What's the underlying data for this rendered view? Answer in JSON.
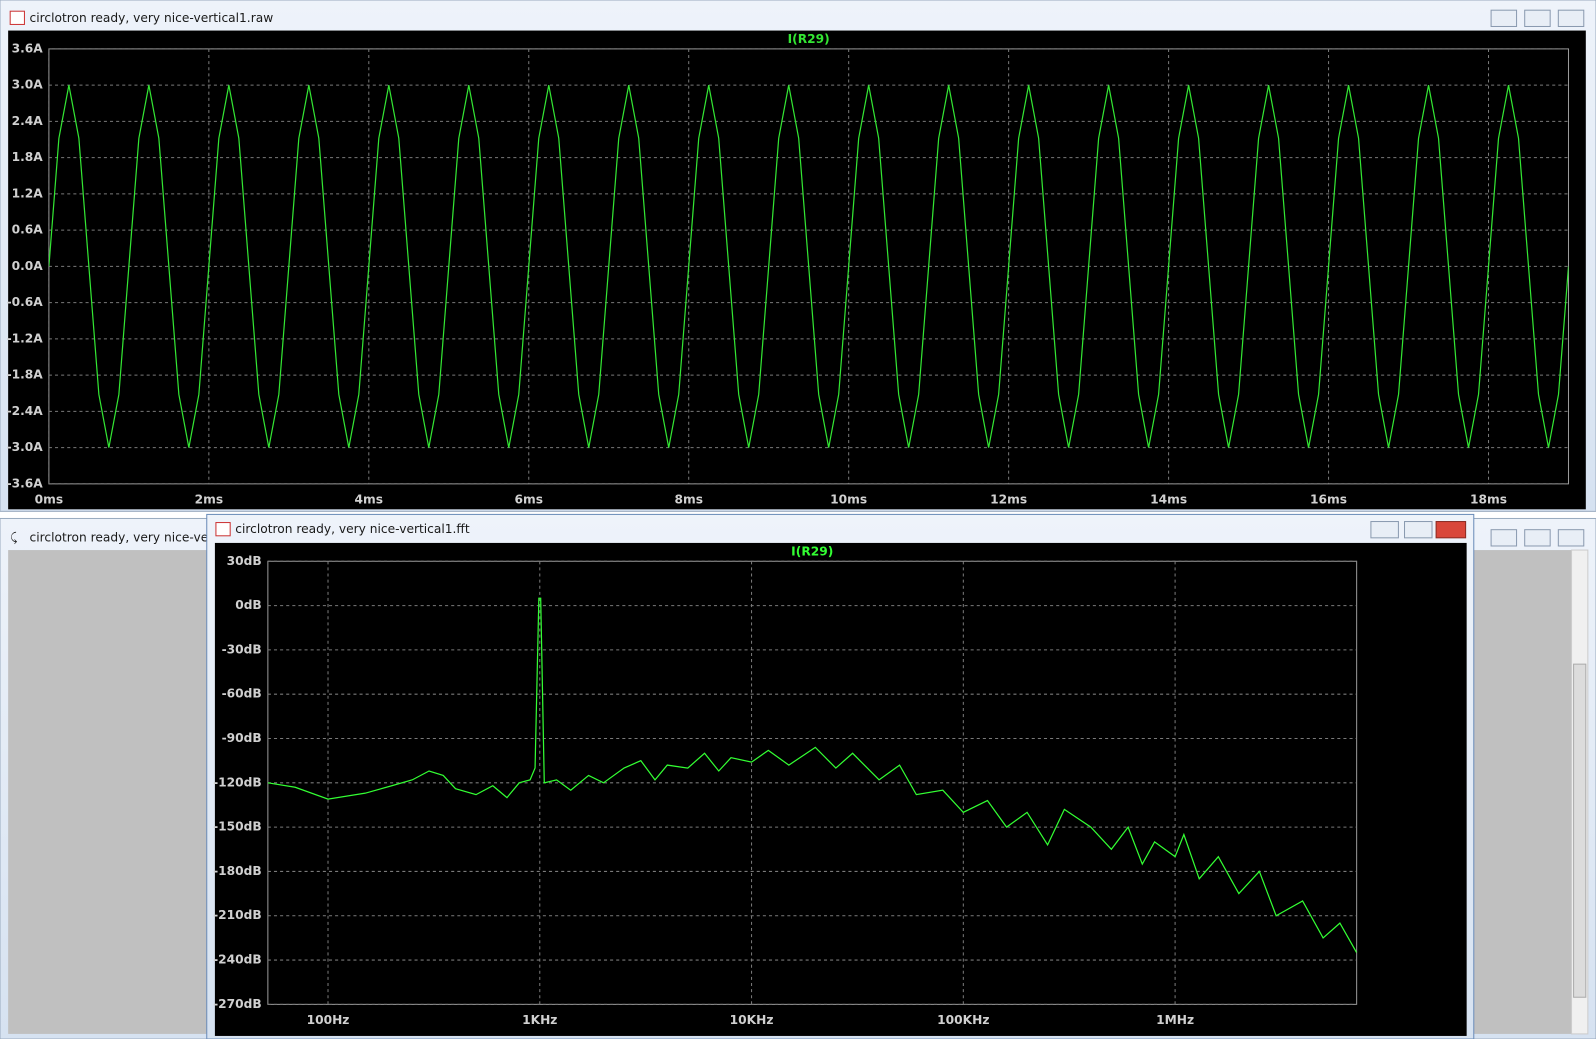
{
  "windows": [
    {
      "title": "circlotron ready, very nice-vertical1.raw"
    },
    {
      "title": "circlotron ready, very nice-vertica"
    },
    {
      "title": "circlotron ready, very nice-vertical1.fft"
    }
  ],
  "chart_data": [
    {
      "type": "line",
      "xscale": "linear",
      "grid": true,
      "x": [
        0,
        0.125,
        0.25,
        0.375,
        0.5,
        0.625,
        0.75,
        0.875,
        1,
        1.125,
        1.25,
        1.375,
        1.5,
        1.625,
        1.75,
        1.875,
        2,
        2.125,
        2.25,
        2.375,
        2.5,
        2.625,
        2.75,
        2.875,
        3,
        3.125,
        3.25,
        3.375,
        3.5,
        3.625,
        3.75,
        3.875,
        4,
        4.125,
        4.25,
        4.375,
        4.5,
        4.625,
        4.75,
        4.875,
        5,
        5.125,
        5.25,
        5.375,
        5.5,
        5.625,
        5.75,
        5.875,
        6,
        6.125,
        6.25,
        6.375,
        6.5,
        6.625,
        6.75,
        6.875,
        7,
        7.125,
        7.25,
        7.375,
        7.5,
        7.625,
        7.75,
        7.875,
        8,
        8.125,
        8.25,
        8.375,
        8.5,
        8.625,
        8.75,
        8.875,
        9,
        9.125,
        9.25,
        9.375,
        9.5,
        9.625,
        9.75,
        9.875,
        10,
        10.125,
        10.25,
        10.375,
        10.5,
        10.625,
        10.75,
        10.875,
        11,
        11.125,
        11.25,
        11.375,
        11.5,
        11.625,
        11.75,
        11.875,
        12,
        12.125,
        12.25,
        12.375,
        12.5,
        12.625,
        12.75,
        12.875,
        13,
        13.125,
        13.25,
        13.375,
        13.5,
        13.625,
        13.75,
        13.875,
        14,
        14.125,
        14.25,
        14.375,
        14.5,
        14.625,
        14.75,
        14.875,
        15,
        15.125,
        15.25,
        15.375,
        15.5,
        15.625,
        15.75,
        15.875,
        16,
        16.125,
        16.25,
        16.375,
        16.5,
        16.625,
        16.75,
        16.875,
        17,
        17.125,
        17.25,
        17.375,
        17.5,
        17.625,
        17.75,
        17.875,
        18,
        18.125,
        18.25,
        18.375,
        18.5,
        18.625,
        18.75,
        18.875,
        19
      ],
      "series": [
        {
          "name": "I(R29)",
          "color": "#33e633",
          "values": [
            0,
            2.12,
            3,
            2.12,
            0,
            -2.12,
            -3,
            -2.12,
            0,
            2.12,
            3,
            2.12,
            0,
            -2.12,
            -3,
            -2.12,
            0,
            2.12,
            3,
            2.12,
            0,
            -2.12,
            -3,
            -2.12,
            0,
            2.12,
            3,
            2.12,
            0,
            -2.12,
            -3,
            -2.12,
            0,
            2.12,
            3,
            2.12,
            0,
            -2.12,
            -3,
            -2.12,
            0,
            2.12,
            3,
            2.12,
            0,
            -2.12,
            -3,
            -2.12,
            0,
            2.12,
            3,
            2.12,
            0,
            -2.12,
            -3,
            -2.12,
            0,
            2.12,
            3,
            2.12,
            0,
            -2.12,
            -3,
            -2.12,
            0,
            2.12,
            3,
            2.12,
            0,
            -2.12,
            -3,
            -2.12,
            0,
            2.12,
            3,
            2.12,
            0,
            -2.12,
            -3,
            -2.12,
            0,
            2.12,
            3,
            2.12,
            0,
            -2.12,
            -3,
            -2.12,
            0,
            2.12,
            3,
            2.12,
            0,
            -2.12,
            -3,
            -2.12,
            0,
            2.12,
            3,
            2.12,
            0,
            -2.12,
            -3,
            -2.12,
            0,
            2.12,
            3,
            2.12,
            0,
            -2.12,
            -3,
            -2.12,
            0,
            2.12,
            3,
            2.12,
            0,
            -2.12,
            -3,
            -2.12,
            0,
            2.12,
            3,
            2.12,
            0,
            -2.12,
            -3,
            -2.12,
            0,
            2.12,
            3,
            2.12,
            0,
            -2.12,
            -3,
            -2.12,
            0,
            2.12,
            3,
            2.12,
            0,
            -2.12,
            -3,
            -2.12,
            0,
            2.12,
            3,
            2.12,
            0,
            -2.12,
            -3,
            -2.12,
            0
          ]
        }
      ],
      "xlim": [
        0,
        19
      ],
      "xticks": [
        {
          "value": 0,
          "label": "0ms"
        },
        {
          "value": 2,
          "label": "2ms"
        },
        {
          "value": 4,
          "label": "4ms"
        },
        {
          "value": 6,
          "label": "6ms"
        },
        {
          "value": 8,
          "label": "8ms"
        },
        {
          "value": 10,
          "label": "10ms"
        },
        {
          "value": 12,
          "label": "12ms"
        },
        {
          "value": 14,
          "label": "14ms"
        },
        {
          "value": 16,
          "label": "16ms"
        },
        {
          "value": 18,
          "label": "18ms"
        }
      ],
      "ylim": [
        -3.6,
        3.6
      ],
      "yticks": [
        {
          "value": 3.6,
          "label": "3.6A"
        },
        {
          "value": 3.0,
          "label": "3.0A"
        },
        {
          "value": 2.4,
          "label": "2.4A"
        },
        {
          "value": 1.8,
          "label": "1.8A"
        },
        {
          "value": 1.2,
          "label": "1.2A"
        },
        {
          "value": 0.6,
          "label": "0.6A"
        },
        {
          "value": 0,
          "label": "0.0A"
        },
        {
          "value": -0.6,
          "label": "-0.6A"
        },
        {
          "value": -1.2,
          "label": "-1.2A"
        },
        {
          "value": -1.8,
          "label": "-1.8A"
        },
        {
          "value": -2.4,
          "label": "-2.4A"
        },
        {
          "value": -3.0,
          "label": "-3.0A"
        },
        {
          "value": -3.6,
          "label": "-3.6A"
        }
      ]
    },
    {
      "type": "line",
      "xscale": "log",
      "grid": true,
      "x": [
        52,
        70,
        100,
        150,
        200,
        250,
        300,
        350,
        400,
        500,
        600,
        700,
        800,
        900,
        950,
        990,
        1000,
        1010,
        1050,
        1200,
        1400,
        1700,
        2000,
        2500,
        3000,
        3500,
        4000,
        5000,
        6000,
        7000,
        8000,
        10000,
        12000,
        15000,
        20000,
        25000,
        30000,
        40000,
        50000,
        60000,
        80000,
        100000,
        130000,
        160000,
        200000,
        250000,
        300000,
        400000,
        500000,
        600000,
        700000,
        800000,
        1000000,
        1100000,
        1300000,
        1600000,
        2000000,
        2500000,
        3000000,
        4000000,
        5000000,
        6000000,
        7200000
      ],
      "series": [
        {
          "name": "I(R29)",
          "color": "#33ff33",
          "values": [
            -120,
            -123,
            -131,
            -127,
            -122,
            -118,
            -112,
            -115,
            -124,
            -128,
            -122,
            -130,
            -120,
            -118,
            -110,
            5,
            5,
            5,
            -120,
            -118,
            -125,
            -115,
            -120,
            -110,
            -105,
            -118,
            -108,
            -110,
            -100,
            -112,
            -103,
            -106,
            -98,
            -108,
            -96,
            -110,
            -100,
            -118,
            -108,
            -128,
            -125,
            -140,
            -132,
            -150,
            -140,
            -162,
            -138,
            -150,
            -165,
            -150,
            -175,
            -160,
            -170,
            -155,
            -185,
            -170,
            -195,
            -180,
            -210,
            -200,
            -225,
            -215,
            -235
          ]
        }
      ],
      "xlim": [
        52,
        7200000
      ],
      "xticks": [
        {
          "value": 100,
          "label": "100Hz"
        },
        {
          "value": 1000,
          "label": "1KHz"
        },
        {
          "value": 10000,
          "label": "10KHz"
        },
        {
          "value": 100000,
          "label": "100KHz"
        },
        {
          "value": 1000000,
          "label": "1MHz"
        }
      ],
      "ylim": [
        -270,
        30
      ],
      "yticks": [
        {
          "value": 30,
          "label": "30dB"
        },
        {
          "value": 0,
          "label": "0dB"
        },
        {
          "value": -30,
          "label": "-30dB"
        },
        {
          "value": -60,
          "label": "-60dB"
        },
        {
          "value": -90,
          "label": "-90dB"
        },
        {
          "value": -120,
          "label": "-120dB"
        },
        {
          "value": -150,
          "label": "-150dB"
        },
        {
          "value": -180,
          "label": "-180dB"
        },
        {
          "value": -210,
          "label": "-210dB"
        },
        {
          "value": -240,
          "label": "-240dB"
        },
        {
          "value": -270,
          "label": "-270dB"
        }
      ]
    }
  ]
}
